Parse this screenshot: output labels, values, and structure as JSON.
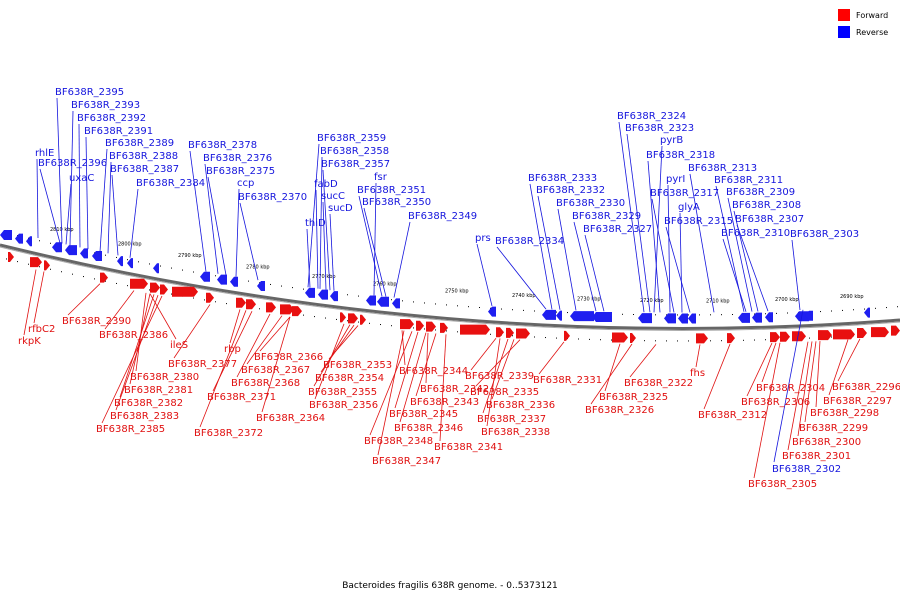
{
  "legend": {
    "forward_label": "Forward",
    "reverse_label": "Reverse",
    "forward_color": "#ff0000",
    "reverse_color": "#0000ff"
  },
  "caption": "Bacteroides fragilis 638R genome. - 0..5373121",
  "scale_ticks": [
    "2810 kbp",
    "2800 kbp",
    "2790 kbp",
    "2780 kbp",
    "2770 kbp",
    "2760 kbp",
    "2750 kbp",
    "2740 kbp",
    "2730 kbp",
    "2720 kbp",
    "2710 kbp",
    "2700 kbp",
    "2690 kbp"
  ],
  "reverse_labels": [
    "rhlE",
    "BF638R_2396",
    "uxaC",
    "BF638R_2395",
    "BF638R_2393",
    "BF638R_2392",
    "BF638R_2391",
    "BF638R_2389",
    "BF638R_2388",
    "BF638R_2387",
    "BF638R_2384",
    "BF638R_2378",
    "BF638R_2376",
    "BF638R_2375",
    "ccp",
    "BF638R_2370",
    "BF638R_2359",
    "BF638R_2358",
    "BF638R_2357",
    "fabD",
    "sucC",
    "sucD",
    "thiD",
    "fsr",
    "BF638R_2351",
    "BF638R_2350",
    "BF638R_2349",
    "prs",
    "BF638R_2334",
    "BF638R_2333",
    "BF638R_2332",
    "BF638R_2330",
    "BF638R_2329",
    "BF638R_2327",
    "BF638R_2324",
    "BF638R_2323",
    "pyrB",
    "BF638R_2318",
    "pyrI",
    "BF638R_2317",
    "glyA",
    "BF638R_2315",
    "BF638R_2313",
    "BF638R_2311",
    "BF638R_2309",
    "BF638R_2308",
    "BF638R_2307",
    "BF638R_2310",
    "BF638R_2303",
    "BF638R_2302"
  ],
  "forward_labels": [
    "rfbC2",
    "rkpK",
    "BF638R_2390",
    "BF638R_2386",
    "ileS",
    "BF638R_2380",
    "BF638R_2381",
    "BF638R_2382",
    "BF638R_2383",
    "BF638R_2385",
    "BF638R_2377",
    "rbp",
    "BF638R_2371",
    "BF638R_2372",
    "BF638R_2366",
    "BF638R_2367",
    "BF638R_2368",
    "BF638R_2364",
    "BF638R_2353",
    "BF638R_2354",
    "BF638R_2355",
    "BF638R_2356",
    "BF638R_2344",
    "BF638R_2342",
    "BF638R_2343",
    "BF638R_2345",
    "BF638R_2346",
    "BF638R_2348",
    "BF638R_2347",
    "BF638R_2341",
    "BF638R_2339",
    "BF638R_2335",
    "BF638R_2336",
    "BF638R_2337",
    "BF638R_2338",
    "BF638R_2331",
    "BF638R_2322",
    "BF638R_2325",
    "BF638R_2326",
    "fhs",
    "BF638R_2312",
    "BF638R_2304",
    "BF638R_2306",
    "BF638R_2296",
    "BF638R_2297",
    "BF638R_2298",
    "BF638R_2299",
    "BF638R_2300",
    "BF638R_2301",
    "BF638R_2305"
  ]
}
